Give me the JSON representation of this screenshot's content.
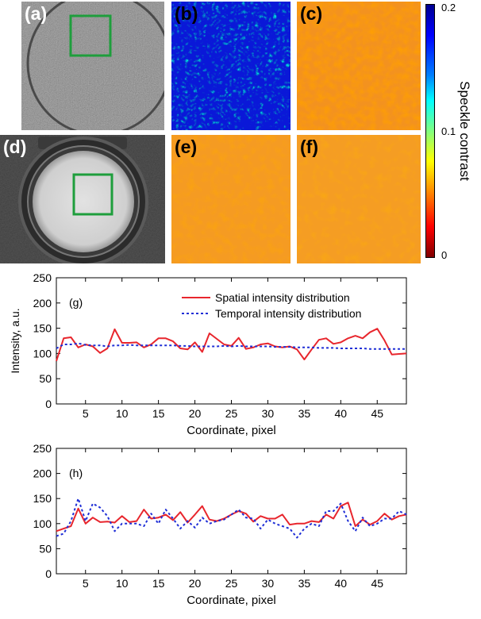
{
  "panels": {
    "a": {
      "label": "(a)"
    },
    "b": {
      "label": "(b)"
    },
    "c": {
      "label": "(c)"
    },
    "d": {
      "label": "(d)"
    },
    "e": {
      "label": "(e)"
    },
    "f": {
      "label": "(f)"
    }
  },
  "colorbar": {
    "title": "Speckle contrast",
    "ticks": [
      "0.2",
      "0.1",
      "0"
    ],
    "range": [
      0,
      0.2
    ],
    "colormap": "jet"
  },
  "colors": {
    "spatial": "#e8262d",
    "temporal": "#1f2ed6",
    "roi_box": "#1e9e3c"
  },
  "chart_data": [
    {
      "type": "line",
      "panel_label": "(g)",
      "xlabel": "Coordinate, pixel",
      "ylabel": "Intensity, a.u.",
      "xlim": [
        1,
        49
      ],
      "ylim": [
        0,
        250
      ],
      "xticks": [
        5,
        10,
        15,
        20,
        25,
        30,
        35,
        40,
        45
      ],
      "yticks": [
        0,
        50,
        100,
        150,
        200,
        250
      ],
      "legend_position": "top-right",
      "series": [
        {
          "name": "Spatial intensity distribution",
          "style": "solid",
          "x": [
            1,
            2,
            3,
            4,
            5,
            6,
            7,
            8,
            9,
            10,
            11,
            12,
            13,
            14,
            15,
            16,
            17,
            18,
            19,
            20,
            21,
            22,
            23,
            24,
            25,
            26,
            27,
            28,
            29,
            30,
            31,
            32,
            33,
            34,
            35,
            36,
            37,
            38,
            39,
            40,
            41,
            42,
            43,
            44,
            45,
            46,
            47,
            48,
            49
          ],
          "values": [
            85,
            130,
            132,
            112,
            118,
            114,
            101,
            110,
            148,
            121,
            121,
            122,
            112,
            118,
            130,
            130,
            124,
            110,
            108,
            122,
            103,
            140,
            129,
            118,
            115,
            131,
            109,
            112,
            118,
            120,
            114,
            112,
            114,
            108,
            88,
            108,
            127,
            130,
            119,
            122,
            130,
            135,
            130,
            142,
            149,
            126,
            98,
            99,
            100
          ]
        },
        {
          "name": "Temporal intensity distribution",
          "style": "dashed",
          "x": [
            1,
            2,
            3,
            4,
            5,
            6,
            7,
            8,
            9,
            10,
            11,
            12,
            13,
            14,
            15,
            16,
            17,
            18,
            19,
            20,
            21,
            22,
            23,
            24,
            25,
            26,
            27,
            28,
            29,
            30,
            31,
            32,
            33,
            34,
            35,
            36,
            37,
            38,
            39,
            40,
            41,
            42,
            43,
            44,
            45,
            46,
            47,
            48,
            49
          ],
          "values": [
            110,
            118,
            118,
            120,
            117,
            116,
            116,
            114,
            116,
            116,
            117,
            116,
            116,
            116,
            116,
            116,
            116,
            115,
            115,
            114,
            114,
            114,
            114,
            115,
            114,
            115,
            114,
            114,
            114,
            114,
            113,
            113,
            113,
            112,
            112,
            112,
            111,
            111,
            111,
            110,
            110,
            110,
            110,
            109,
            109,
            109,
            109,
            109,
            109
          ]
        }
      ]
    },
    {
      "type": "line",
      "panel_label": "(h)",
      "xlabel": "Coordinate, pixel",
      "ylabel": "",
      "xlim": [
        1,
        49
      ],
      "ylim": [
        0,
        250
      ],
      "xticks": [
        5,
        10,
        15,
        20,
        25,
        30,
        35,
        40,
        45
      ],
      "yticks": [
        0,
        50,
        100,
        150,
        200,
        250
      ],
      "series": [
        {
          "name": "Spatial intensity distribution",
          "style": "solid",
          "x": [
            1,
            2,
            3,
            4,
            5,
            6,
            7,
            8,
            9,
            10,
            11,
            12,
            13,
            14,
            15,
            16,
            17,
            18,
            19,
            20,
            21,
            22,
            23,
            24,
            25,
            26,
            27,
            28,
            29,
            30,
            31,
            32,
            33,
            34,
            35,
            36,
            37,
            38,
            39,
            40,
            41,
            42,
            43,
            44,
            45,
            46,
            47,
            48,
            49
          ],
          "values": [
            85,
            90,
            95,
            130,
            100,
            112,
            103,
            104,
            102,
            115,
            103,
            105,
            128,
            110,
            112,
            118,
            107,
            123,
            102,
            118,
            135,
            108,
            105,
            110,
            118,
            125,
            120,
            104,
            115,
            110,
            110,
            118,
            98,
            100,
            100,
            105,
            103,
            118,
            110,
            135,
            142,
            95,
            108,
            98,
            105,
            120,
            108,
            115,
            118
          ]
        },
        {
          "name": "Temporal intensity distribution",
          "style": "dashed",
          "x": [
            1,
            2,
            3,
            4,
            5,
            6,
            7,
            8,
            9,
            10,
            11,
            12,
            13,
            14,
            15,
            16,
            17,
            18,
            19,
            20,
            21,
            22,
            23,
            24,
            25,
            26,
            27,
            28,
            29,
            30,
            31,
            32,
            33,
            34,
            35,
            36,
            37,
            38,
            39,
            40,
            41,
            42,
            43,
            44,
            45,
            46,
            47,
            48,
            49
          ],
          "values": [
            75,
            80,
            105,
            150,
            105,
            140,
            132,
            115,
            85,
            100,
            100,
            100,
            95,
            120,
            100,
            128,
            110,
            90,
            105,
            92,
            112,
            100,
            105,
            108,
            118,
            128,
            112,
            110,
            90,
            108,
            100,
            95,
            90,
            72,
            90,
            100,
            95,
            125,
            125,
            140,
            105,
            85,
            112,
            95,
            100,
            110,
            110,
            125,
            118
          ]
        }
      ]
    }
  ]
}
